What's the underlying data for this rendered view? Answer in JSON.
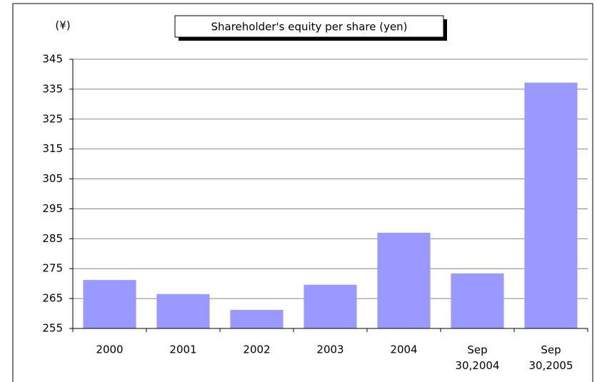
{
  "chart_data": {
    "type": "bar",
    "title": "Shareholder's equity per share (yen)",
    "y_unit": "(¥)",
    "categories": [
      "2000",
      "2001",
      "2002",
      "2003",
      "2004",
      "Sep 30,2004",
      "Sep 30,2005"
    ],
    "values": [
      271.2,
      266.5,
      261.2,
      269.6,
      287,
      273.4,
      337.2
    ],
    "color": "#9999ff",
    "ylim": [
      255,
      345
    ],
    "yticks": [
      255,
      265,
      275,
      285,
      295,
      305,
      315,
      325,
      335,
      345
    ],
    "grid": true
  }
}
